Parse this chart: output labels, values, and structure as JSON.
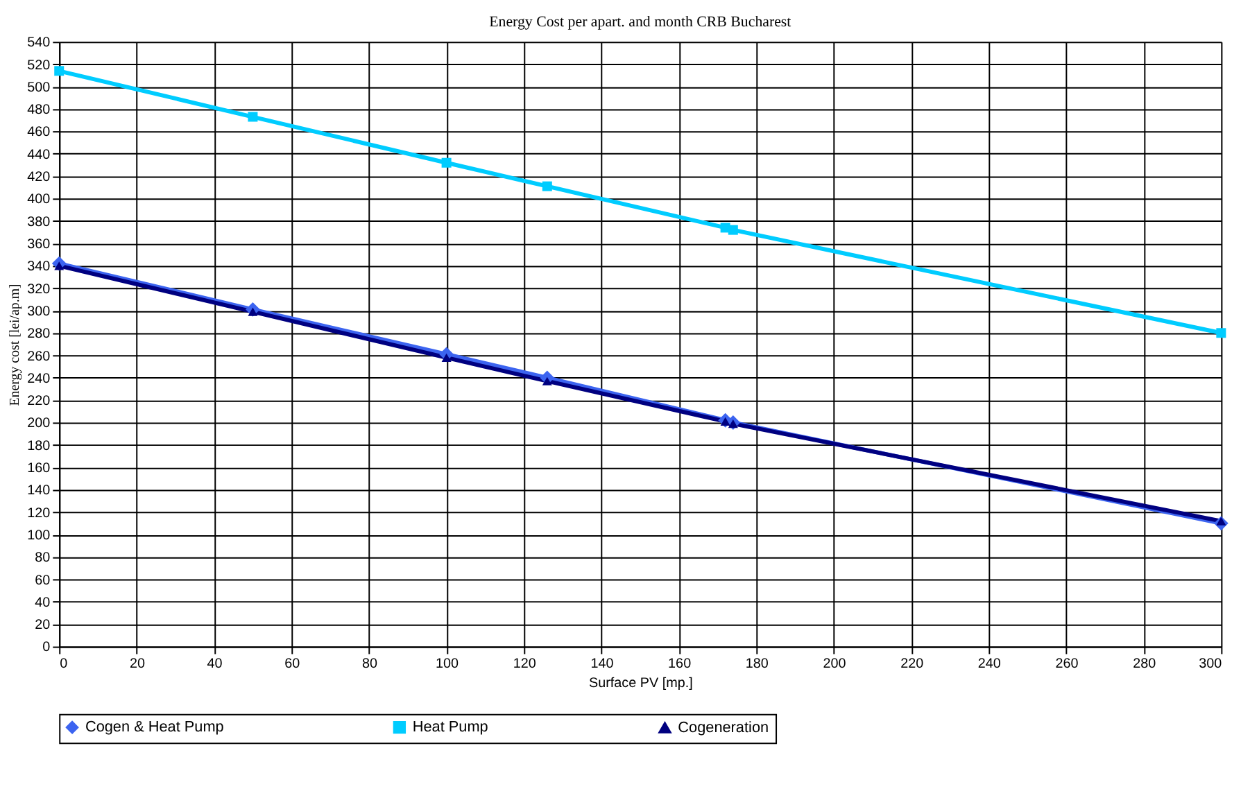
{
  "chart_data": {
    "type": "line",
    "title": "Energy Cost per apart. and month CRB Bucharest",
    "xlabel": "Surface PV [mp.]",
    "ylabel": "Energy cost [lei/ap.m]",
    "xlim": [
      0,
      300
    ],
    "xticks": [
      0,
      20,
      40,
      60,
      80,
      100,
      120,
      140,
      160,
      180,
      200,
      220,
      240,
      260,
      280,
      300
    ],
    "ylim": [
      0,
      540
    ],
    "yticks": [
      0,
      20,
      40,
      60,
      80,
      100,
      120,
      140,
      160,
      180,
      200,
      220,
      240,
      260,
      280,
      300,
      320,
      340,
      360,
      380,
      400,
      420,
      440,
      460,
      480,
      500,
      520,
      540
    ],
    "grid": true,
    "legend": "bottom",
    "line_style": "solid",
    "series": [
      {
        "name": "Cogen & Heat Pump",
        "color": "#3c64f0",
        "marker": "diamond",
        "x": [
          0,
          50,
          100,
          126,
          172,
          174,
          300
        ],
        "values": [
          342,
          301,
          261,
          240,
          202,
          200,
          110
        ]
      },
      {
        "name": "Heat Pump",
        "color": "#00ccff",
        "marker": "square",
        "x": [
          0,
          50,
          100,
          126,
          172,
          174,
          300
        ],
        "values": [
          514,
          473,
          432,
          411,
          374,
          372,
          280
        ]
      },
      {
        "name": "Cogeneration",
        "color": "#000080",
        "marker": "triangle",
        "x": [
          0,
          50,
          100,
          126,
          172,
          174,
          300
        ],
        "values": [
          340,
          299,
          258,
          237,
          201,
          199,
          112
        ]
      }
    ]
  }
}
